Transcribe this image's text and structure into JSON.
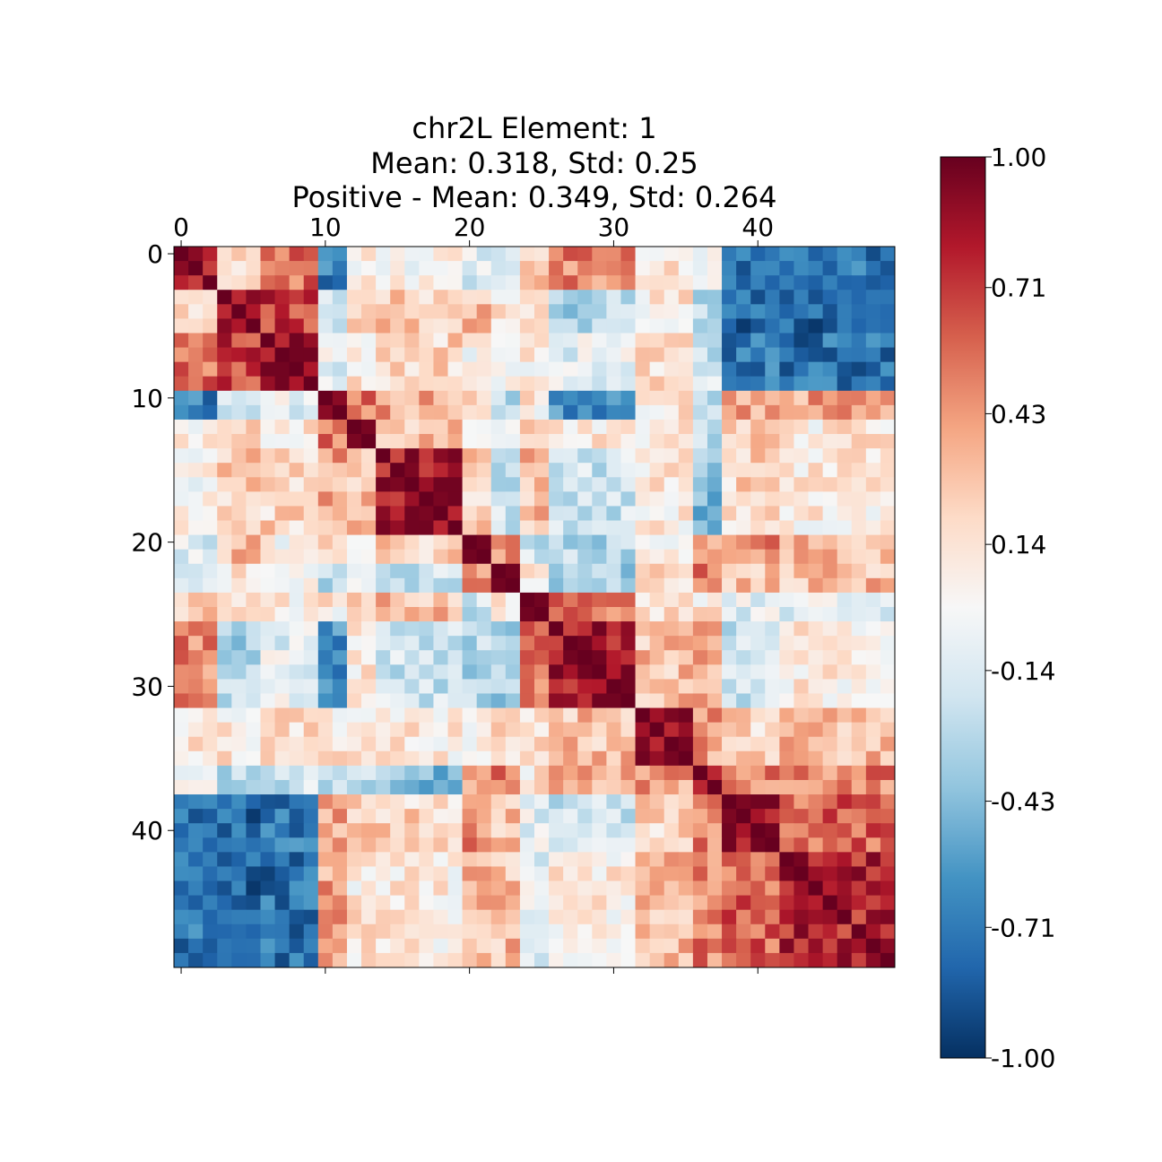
{
  "chart_data": {
    "type": "heatmap",
    "title_lines": [
      "chr2L Element: 1",
      "Mean: 0.318, Std: 0.25",
      "Positive - Mean: 0.349, Std: 0.264"
    ],
    "xlabel": "",
    "ylabel": "",
    "size": 50,
    "x_ticks": [
      "0",
      "10",
      "20",
      "30",
      "40"
    ],
    "y_ticks": [
      "0",
      "10",
      "20",
      "30",
      "40"
    ],
    "tick_values": [
      0,
      10,
      20,
      30,
      40
    ],
    "color_range": [
      -1.0,
      1.0
    ],
    "colormap": "RdBu_r",
    "colorbar_ticks": [
      "1.00",
      "0.71",
      "0.43",
      "0.14",
      "-0.14",
      "-0.43",
      "-0.71",
      "-1.00"
    ],
    "colorbar_tick_values": [
      1.0,
      0.71,
      0.43,
      0.14,
      -0.14,
      -0.43,
      -0.71,
      -1.0
    ],
    "block_groups": [
      3,
      6,
      10,
      12,
      14,
      20,
      22,
      24,
      26,
      32,
      36,
      38,
      42,
      50
    ],
    "block_correlations": [
      [
        0.85,
        0.1,
        0.55,
        -0.7,
        0.1,
        0.05,
        -0.1,
        -0.2,
        0.2,
        0.5,
        0.1,
        -0.1,
        -0.7,
        -0.75
      ],
      [
        0.1,
        0.9,
        0.7,
        -0.2,
        0.2,
        0.25,
        0.3,
        0.1,
        0.1,
        -0.3,
        0.1,
        -0.3,
        -0.8,
        -0.8
      ],
      [
        0.55,
        0.7,
        0.9,
        -0.1,
        0.1,
        0.2,
        0.05,
        0.1,
        0.05,
        -0.1,
        0.2,
        -0.2,
        -0.7,
        -0.75
      ],
      [
        -0.7,
        -0.2,
        -0.1,
        0.92,
        0.55,
        0.4,
        0.2,
        -0.3,
        0.1,
        -0.6,
        0.1,
        -0.3,
        0.4,
        0.4
      ],
      [
        0.1,
        0.2,
        0.1,
        0.55,
        0.9,
        0.3,
        0.1,
        -0.1,
        0.2,
        0.1,
        0.1,
        -0.2,
        0.2,
        0.1
      ],
      [
        0.05,
        0.25,
        0.2,
        0.4,
        0.3,
        0.85,
        0.25,
        -0.2,
        0.3,
        -0.2,
        0.1,
        -0.4,
        0.2,
        0.1
      ],
      [
        -0.1,
        0.3,
        0.05,
        0.2,
        0.1,
        0.25,
        0.88,
        0.5,
        -0.2,
        -0.3,
        0.1,
        0.3,
        0.5,
        0.3
      ],
      [
        -0.2,
        0.1,
        0.1,
        -0.3,
        -0.1,
        -0.2,
        0.5,
        0.9,
        0.1,
        -0.3,
        0.2,
        0.5,
        0.3,
        0.3
      ],
      [
        0.2,
        0.1,
        0.05,
        0.1,
        0.2,
        0.3,
        -0.2,
        0.1,
        0.9,
        0.5,
        0.2,
        0.1,
        -0.1,
        -0.1
      ],
      [
        0.5,
        -0.3,
        -0.1,
        -0.6,
        0.1,
        -0.2,
        -0.3,
        -0.3,
        0.5,
        0.85,
        0.3,
        0.4,
        -0.2,
        0.1
      ],
      [
        0.1,
        0.1,
        0.2,
        0.1,
        0.1,
        0.1,
        0.1,
        0.2,
        0.2,
        0.3,
        0.9,
        0.4,
        0.2,
        0.3
      ],
      [
        -0.1,
        -0.3,
        -0.2,
        -0.3,
        -0.2,
        -0.4,
        0.3,
        0.5,
        0.1,
        0.4,
        0.4,
        0.92,
        0.5,
        0.5
      ],
      [
        -0.7,
        -0.8,
        -0.7,
        0.4,
        0.2,
        0.2,
        0.5,
        0.3,
        -0.1,
        -0.2,
        0.2,
        0.5,
        0.9,
        0.6
      ],
      [
        -0.75,
        -0.8,
        -0.75,
        0.4,
        0.1,
        0.1,
        0.3,
        0.3,
        -0.1,
        0.1,
        0.3,
        0.5,
        0.6,
        0.78
      ]
    ]
  }
}
